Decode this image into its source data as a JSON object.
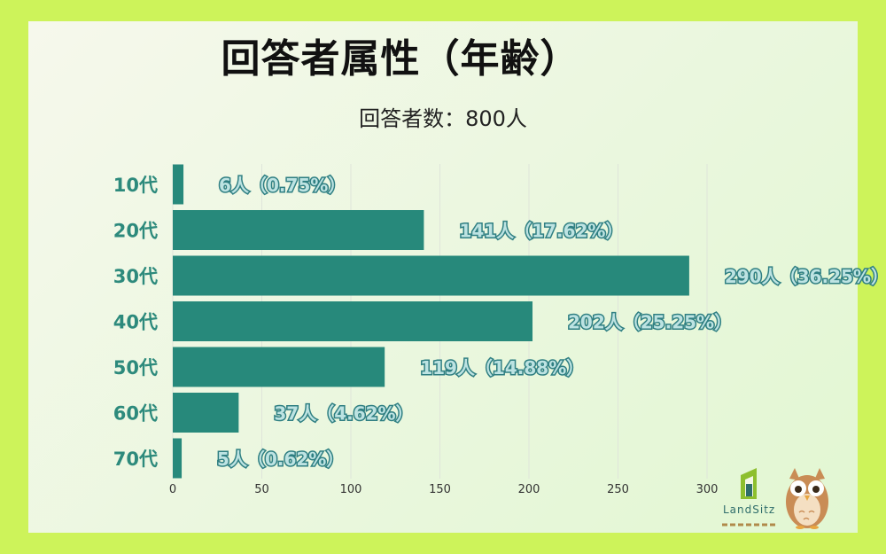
{
  "title": "回答者属性（年齢）",
  "subtitle": "回答者数：800人",
  "brand": {
    "name": "LandSitz"
  },
  "colors": {
    "bar": "#27897b",
    "page_border": "#cdf35a",
    "label_fill": "#bde3e2",
    "label_stroke": "#2f7f82",
    "category_text": "#2d8a7c"
  },
  "icons": [
    "landsitz-logo-icon",
    "owl-mascot-icon"
  ],
  "chart_data": {
    "type": "bar",
    "orientation": "horizontal",
    "title": "回答者属性（年齢）",
    "subtitle": "回答者数：800人",
    "categories": [
      "10代",
      "20代",
      "30代",
      "40代",
      "50代",
      "60代",
      "70代"
    ],
    "values": [
      6,
      141,
      290,
      202,
      119,
      37,
      5
    ],
    "data_labels": [
      "6人（0.75%）",
      "141人（17.62%）",
      "290人（36.25%）",
      "202人（25.25%）",
      "119人（14.88%）",
      "37人（4.62%）",
      "5人（0.62%）"
    ],
    "xlim": [
      0,
      300
    ],
    "xticks": [
      "0",
      "50",
      "100",
      "150",
      "200",
      "250",
      "300"
    ],
    "grid": true,
    "legend": "none"
  }
}
